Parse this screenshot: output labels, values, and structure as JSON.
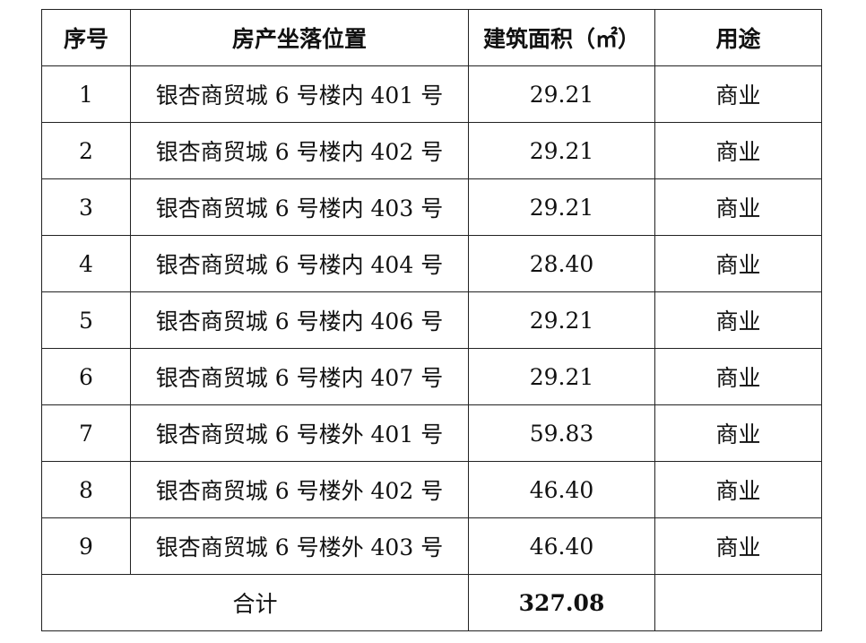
{
  "table": {
    "headers": [
      "序号",
      "房产坐落位置",
      "建筑面积（㎡）",
      "用途"
    ],
    "rows": [
      [
        "1",
        "银杏商贸城 6 号楼内 401 号",
        "29.21",
        "商业"
      ],
      [
        "2",
        "银杏商贸城 6 号楼内 402 号",
        "29.21",
        "商业"
      ],
      [
        "3",
        "银杏商贸城 6 号楼内 403 号",
        "29.21",
        "商业"
      ],
      [
        "4",
        "银杏商贸城 6 号楼内 404 号",
        "28.40",
        "商业"
      ],
      [
        "5",
        "银杏商贸城 6 号楼内 406 号",
        "29.21",
        "商业"
      ],
      [
        "6",
        "银杏商贸城 6 号楼内 407 号",
        "29.21",
        "商业"
      ],
      [
        "7",
        "银杏商贸城 6 号楼外 401 号",
        "59.83",
        "商业"
      ],
      [
        "8",
        "银杏商贸城 6 号楼外 402 号",
        "46.40",
        "商业"
      ],
      [
        "9",
        "银杏商贸城 6 号楼外 403 号",
        "46.40",
        "商业"
      ]
    ],
    "total": {
      "label": "合计",
      "area": "327.08",
      "usage": ""
    }
  }
}
